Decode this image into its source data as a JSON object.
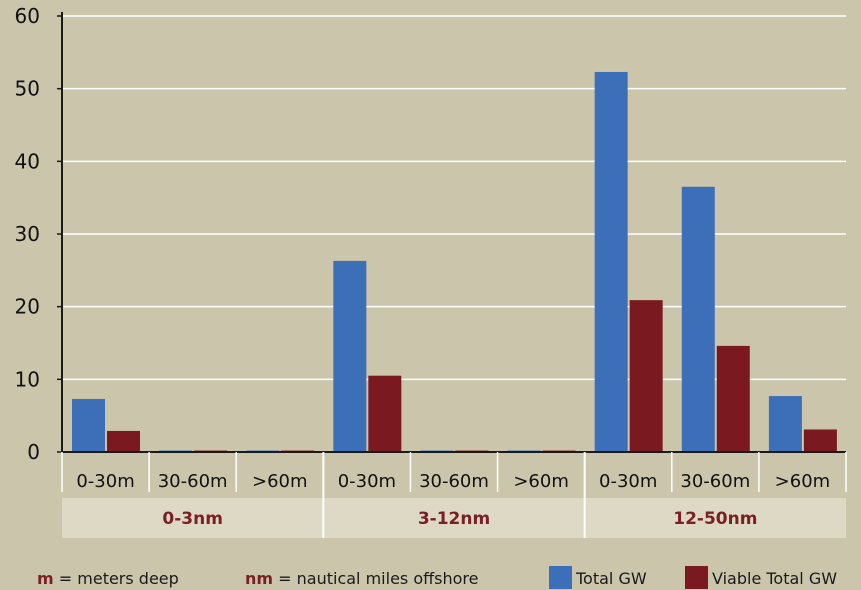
{
  "chart_data": {
    "type": "bar",
    "ylim": [
      0,
      60
    ],
    "yticks": [
      0,
      10,
      20,
      30,
      40,
      50,
      60
    ],
    "grid": true,
    "colors": {
      "total": "#3d6fb8",
      "viable": "#7a1a20",
      "background": "#cbc6ab",
      "group_band": "#ddd9c4",
      "group_label": "#7a1f24"
    },
    "categories": [
      "0-30m",
      "30-60m",
      ">60m",
      "0-30m",
      "30-60m",
      ">60m",
      "0-30m",
      "30-60m",
      ">60m"
    ],
    "groups": [
      {
        "label": "0-3nm",
        "span": [
          0,
          3
        ]
      },
      {
        "label": "3-12nm",
        "span": [
          3,
          6
        ]
      },
      {
        "label": "12-50nm",
        "span": [
          6,
          9
        ]
      }
    ],
    "series": [
      {
        "name": "Total GW",
        "values": [
          7.3,
          0.2,
          0.2,
          26.3,
          0.2,
          0.2,
          52.3,
          36.5,
          7.7
        ]
      },
      {
        "name": "Viable Total GW",
        "values": [
          2.9,
          0.2,
          0.2,
          10.5,
          0.2,
          0.2,
          20.9,
          14.6,
          3.1
        ]
      }
    ],
    "legend_position": "bottom-right"
  },
  "notes": {
    "m_key": "m",
    "m_text": "= meters deep",
    "nm_key": "nm",
    "nm_text": "= nautical miles offshore"
  }
}
